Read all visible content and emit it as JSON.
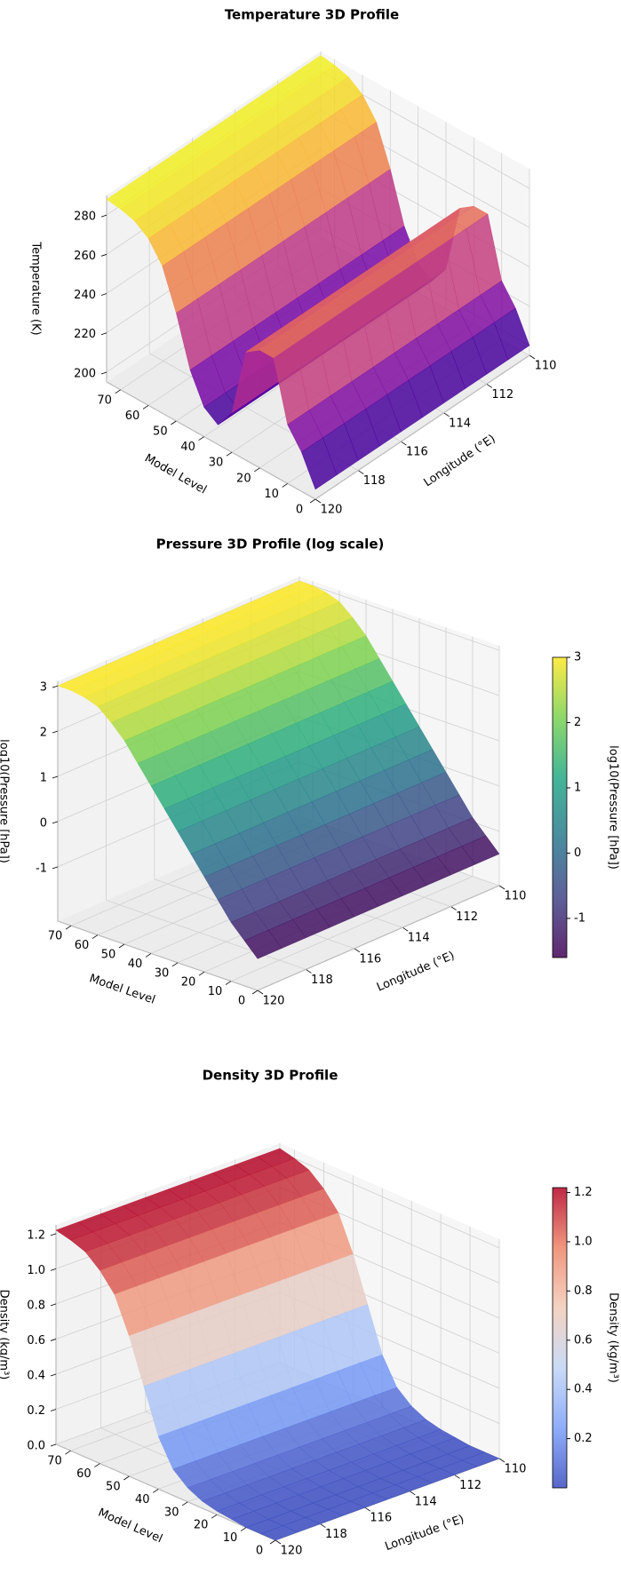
{
  "chart_data": [
    {
      "type": "surface3d",
      "title": "Temperature 3D Profile",
      "xlabel": "Longitude (°E)",
      "ylabel": "Model Level",
      "zlabel": "Temperature (K)",
      "longitudes": [
        110,
        111,
        112,
        113,
        114,
        115,
        116,
        117,
        118,
        119,
        120
      ],
      "levels": [
        0,
        5,
        10,
        15,
        20,
        25,
        30,
        35,
        40,
        45,
        50,
        55,
        60,
        65,
        70,
        75
      ],
      "values": [
        200,
        215,
        225,
        255,
        255,
        250,
        215,
        205,
        210,
        225,
        250,
        270,
        280,
        285,
        287,
        288
      ],
      "xlim": [
        110,
        120
      ],
      "xticks": [
        110,
        112,
        114,
        116,
        118,
        120
      ],
      "ylim": [
        0,
        75
      ],
      "yticks": [
        0,
        10,
        20,
        30,
        40,
        50,
        60,
        70
      ],
      "zlim": [
        195,
        290
      ],
      "zticks": [
        200,
        220,
        240,
        260,
        280
      ],
      "colormap": [
        "#0d0887",
        "#6a00a8",
        "#b12a90",
        "#e16462",
        "#fca636",
        "#f0f921"
      ],
      "grid": true
    },
    {
      "type": "surface3d",
      "title": "Pressure 3D Profile (log scale)",
      "xlabel": "Longitude (°E)",
      "ylabel": "Model Level",
      "zlabel": "log10(Pressure [hPa])",
      "longitudes": [
        110,
        111,
        112,
        113,
        114,
        115,
        116,
        117,
        118,
        119,
        120
      ],
      "levels": [
        0,
        5,
        10,
        15,
        20,
        25,
        30,
        35,
        40,
        45,
        50,
        55,
        60,
        65,
        70,
        75
      ],
      "values": [
        -1.5,
        -1.2,
        -0.9,
        -0.5,
        -0.1,
        0.3,
        0.7,
        1.1,
        1.5,
        1.9,
        2.3,
        2.6,
        2.85,
        2.95,
        3.0,
        3.0
      ],
      "xlim": [
        110,
        120
      ],
      "xticks": [
        110,
        112,
        114,
        116,
        118,
        120
      ],
      "ylim": [
        0,
        75
      ],
      "yticks": [
        0,
        10,
        20,
        30,
        40,
        50,
        60,
        70
      ],
      "zlim": [
        -2.2,
        3.1
      ],
      "zticks": [
        -1,
        0,
        1,
        2,
        3
      ],
      "colormap": [
        "#440154",
        "#414487",
        "#2a788e",
        "#22a884",
        "#7ad151",
        "#fde725"
      ],
      "grid": true,
      "colorbar": {
        "label": "log10(Pressure [hPa])",
        "clim": [
          -1.6,
          3
        ],
        "ticks": [
          -1,
          0,
          1,
          2,
          3
        ]
      }
    },
    {
      "type": "surface3d",
      "title": "Density 3D Profile",
      "xlabel": "Longitude (°E)",
      "ylabel": "Model Level",
      "zlabel": "Density (kg/m³)",
      "longitudes": [
        110,
        111,
        112,
        113,
        114,
        115,
        116,
        117,
        118,
        119,
        120
      ],
      "levels": [
        0,
        5,
        10,
        15,
        20,
        25,
        30,
        35,
        40,
        45,
        50,
        55,
        60,
        65,
        70,
        75
      ],
      "values": [
        0.0,
        0.0,
        0.0,
        0.01,
        0.02,
        0.04,
        0.08,
        0.15,
        0.3,
        0.55,
        0.8,
        1.0,
        1.1,
        1.17,
        1.2,
        1.22
      ],
      "xlim": [
        110,
        120
      ],
      "xticks": [
        110,
        112,
        114,
        116,
        118,
        120
      ],
      "ylim": [
        0,
        75
      ],
      "yticks": [
        0,
        10,
        20,
        30,
        40,
        50,
        60,
        70
      ],
      "zlim": [
        0,
        1.25
      ],
      "zticks": [
        {
          "value": 0,
          "label": "0.0"
        },
        0.2,
        0.4,
        0.6,
        0.8,
        {
          "value": 1,
          "label": "1.0"
        },
        1.2
      ],
      "colormap": [
        "#3b4cc0",
        "#7b9ff9",
        "#c0d4f5",
        "#f2cbb7",
        "#ee8468",
        "#b40426"
      ],
      "grid": true,
      "colorbar": {
        "label": "Density (kg/m³)",
        "clim": [
          0,
          1.22
        ],
        "ticks": [
          0.2,
          0.4,
          0.6,
          0.8,
          {
            "value": 1,
            "label": "1.0"
          },
          1.2
        ]
      }
    }
  ]
}
